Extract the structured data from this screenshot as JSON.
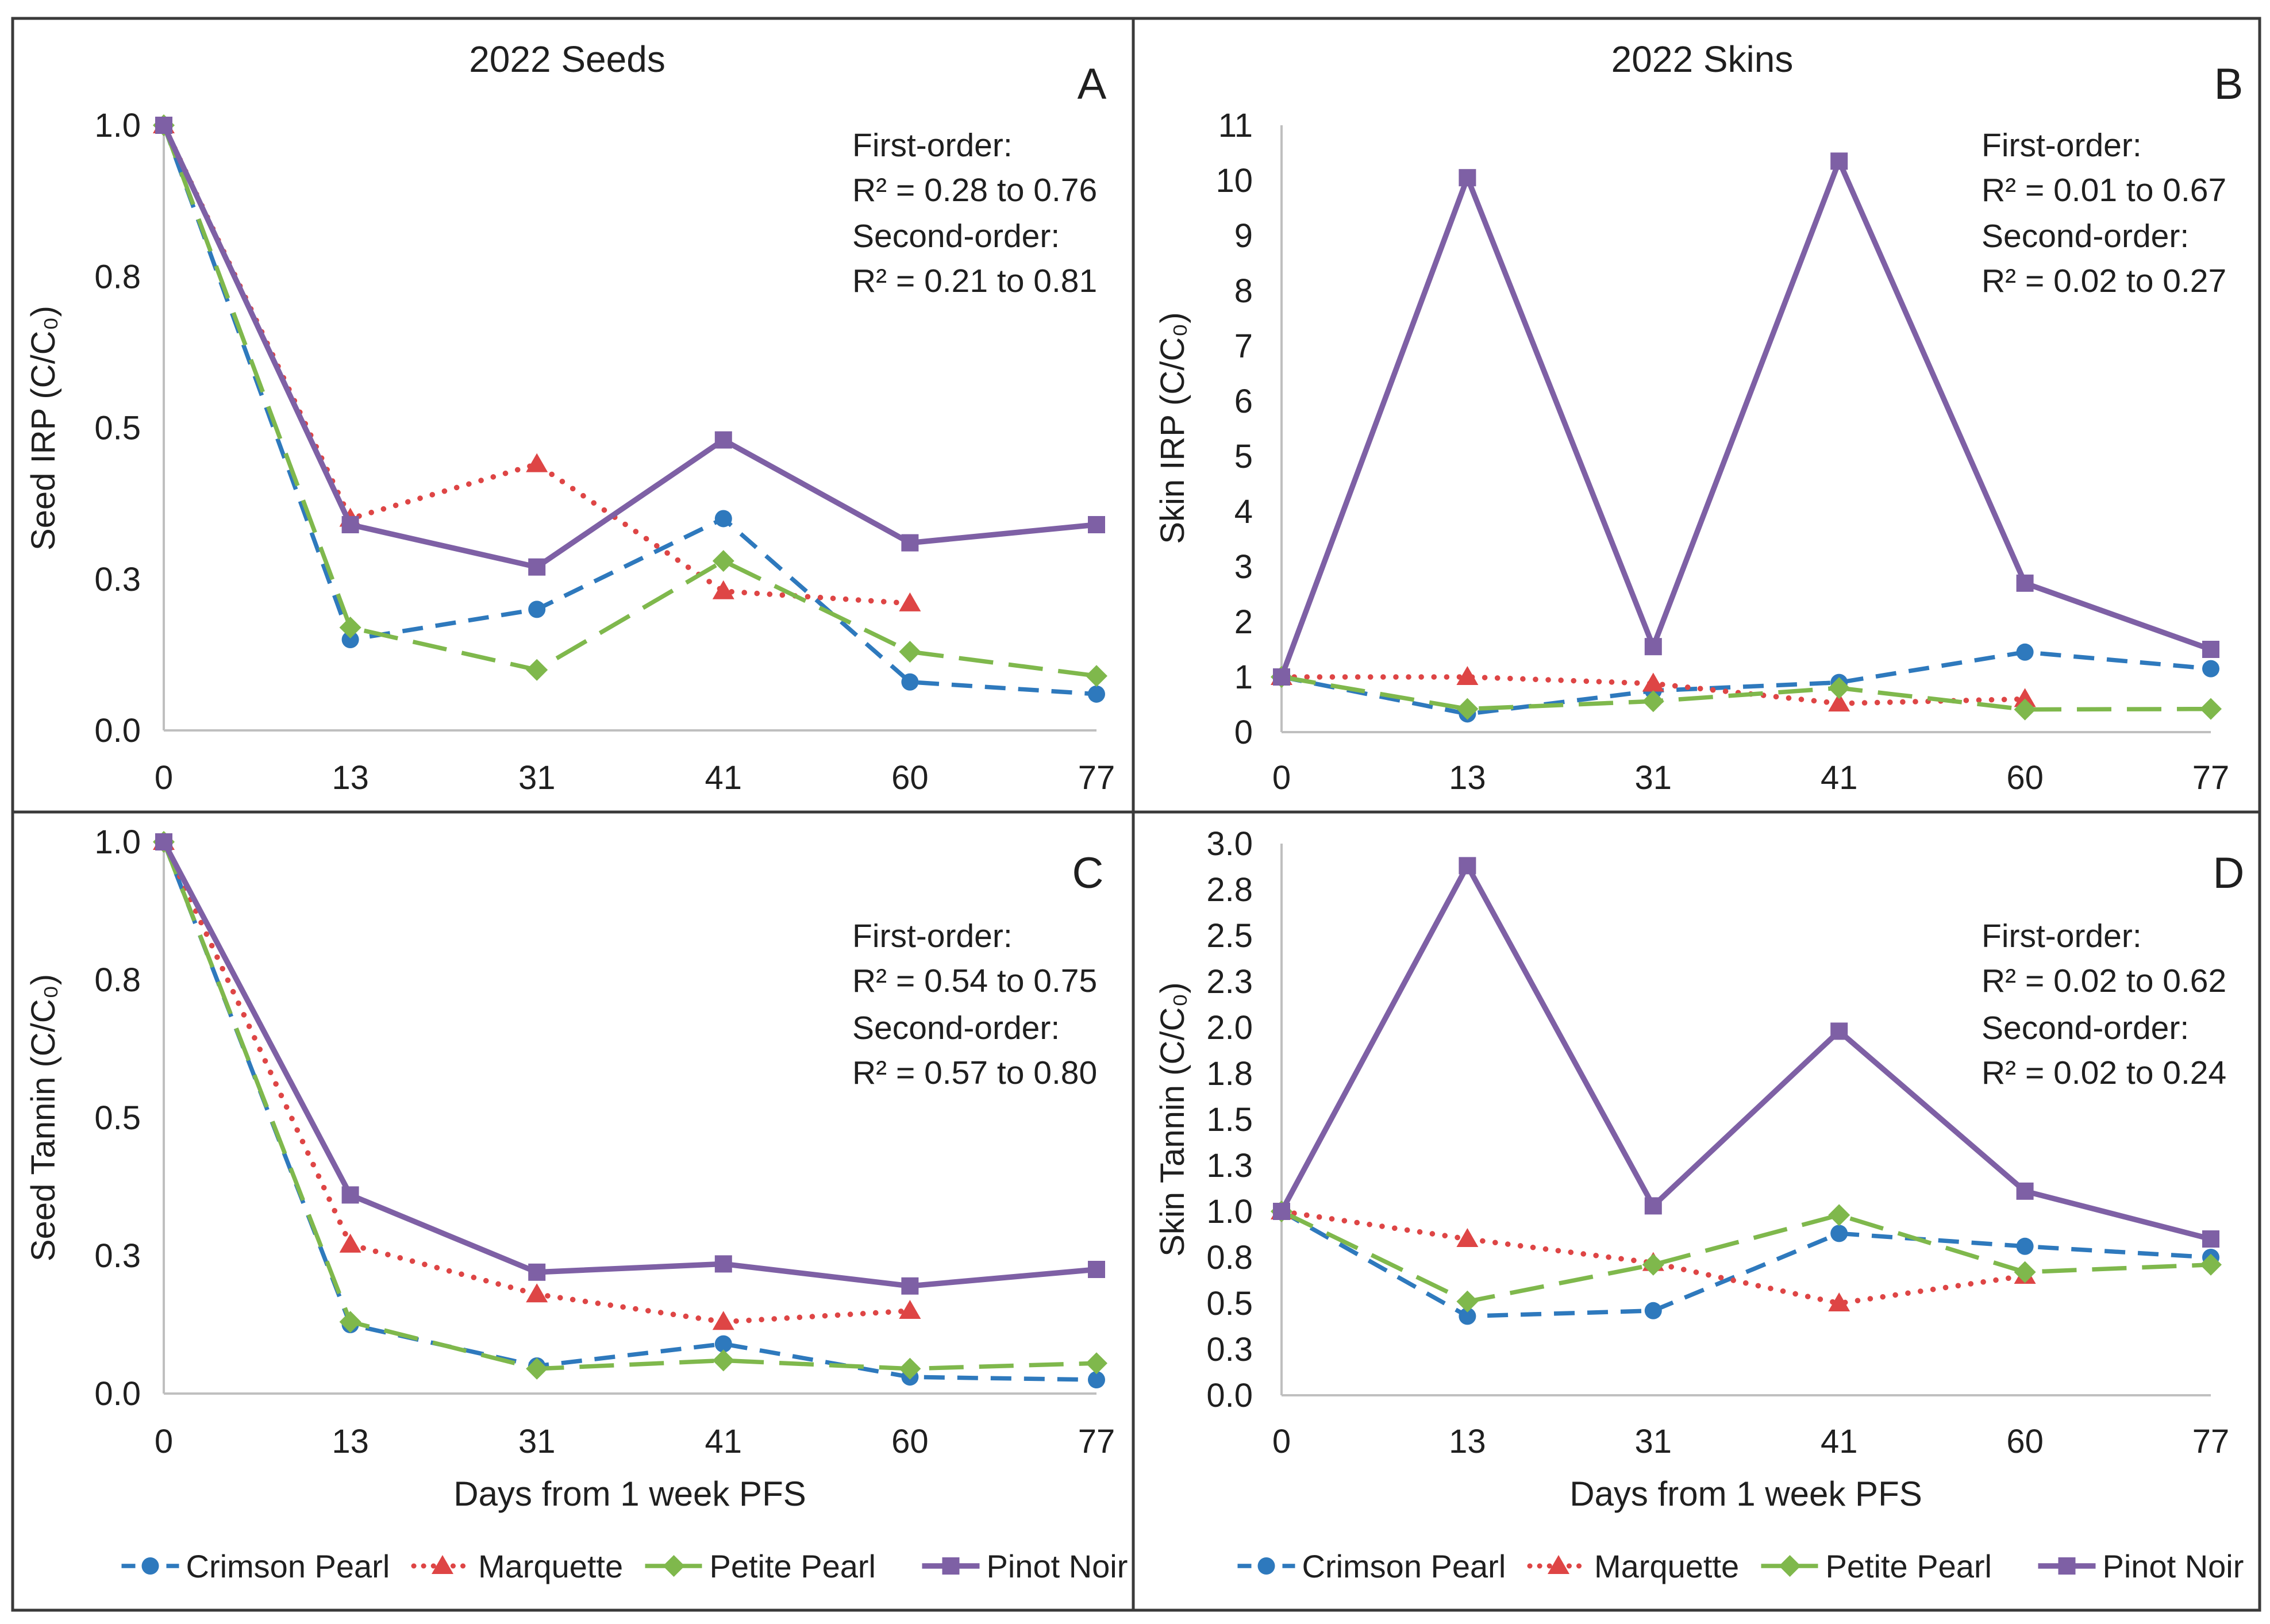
{
  "colors": {
    "crimson_pearl": "#2E79BD",
    "marquette": "#DE4545",
    "petite_pearl": "#7FB84C",
    "pinot_noir": "#7E60A5",
    "axis_line": "#BFBFBF",
    "text": "#1f1f1f",
    "frame": "#3a3a3a"
  },
  "legend": {
    "items": [
      {
        "label": "Crimson Pearl",
        "marker": "circle",
        "line": "dashed",
        "color_key": "crimson_pearl"
      },
      {
        "label": "Marquette",
        "marker": "triangle",
        "line": "dotted",
        "color_key": "marquette"
      },
      {
        "label": "Petite Pearl",
        "marker": "diamond",
        "line": "longdash",
        "color_key": "petite_pearl"
      },
      {
        "label": "Pinot Noir",
        "marker": "square",
        "line": "solid",
        "color_key": "pinot_noir"
      }
    ]
  },
  "x_axis": {
    "title": "Days from 1 week PFS",
    "categories": [
      "0",
      "13",
      "31",
      "41",
      "60",
      "77"
    ]
  },
  "chart_data": [
    {
      "type": "line",
      "letter": "A",
      "title": "2022 Seeds",
      "ylabel": "Seed IRP (C/C₀)",
      "xlabel": "",
      "ylim": [
        0,
        1
      ],
      "yticks": [
        {
          "v": 0.0,
          "label": "0.0"
        },
        {
          "v": 0.25,
          "label": "0.3"
        },
        {
          "v": 0.5,
          "label": "0.5"
        },
        {
          "v": 0.75,
          "label": "0.8"
        },
        {
          "v": 1.0,
          "label": "1.0"
        }
      ],
      "annotation": {
        "line1": "First-order:",
        "line2": "R² = 0.28 to 0.76",
        "line3": "Second-order:",
        "line4": "R² = 0.21 to 0.81"
      },
      "series": [
        {
          "name": "Crimson Pearl",
          "values": [
            1.0,
            0.15,
            0.2,
            0.35,
            0.08,
            0.06
          ]
        },
        {
          "name": "Marquette",
          "values": [
            1.0,
            0.35,
            0.44,
            0.23,
            0.21,
            null
          ]
        },
        {
          "name": "Petite Pearl",
          "values": [
            1.0,
            0.17,
            0.1,
            0.28,
            0.13,
            0.09
          ]
        },
        {
          "name": "Pinot Noir",
          "values": [
            1.0,
            0.34,
            0.27,
            0.48,
            0.31,
            0.34
          ]
        }
      ]
    },
    {
      "type": "line",
      "letter": "B",
      "title": "2022 Skins",
      "ylabel": "Skin IRP  (C/C₀)",
      "xlabel": "",
      "ylim": [
        0,
        11
      ],
      "yticks": [
        {
          "v": 0,
          "label": "0"
        },
        {
          "v": 1,
          "label": "1"
        },
        {
          "v": 2,
          "label": "2"
        },
        {
          "v": 3,
          "label": "3"
        },
        {
          "v": 4,
          "label": "4"
        },
        {
          "v": 5,
          "label": "5"
        },
        {
          "v": 6,
          "label": "6"
        },
        {
          "v": 7,
          "label": "7"
        },
        {
          "v": 8,
          "label": "8"
        },
        {
          "v": 9,
          "label": "9"
        },
        {
          "v": 10,
          "label": "10"
        },
        {
          "v": 11,
          "label": "11"
        }
      ],
      "annotation": {
        "line1": "First-order:",
        "line2": "R² = 0.01 to 0.67",
        "line3": "Second-order:",
        "line4": "R² = 0.02 to 0.27"
      },
      "series": [
        {
          "name": "Crimson Pearl",
          "values": [
            1.0,
            0.33,
            0.75,
            0.9,
            1.45,
            1.15
          ]
        },
        {
          "name": "Marquette",
          "values": [
            1.0,
            1.0,
            0.88,
            0.52,
            0.6,
            null
          ]
        },
        {
          "name": "Petite Pearl",
          "values": [
            1.0,
            0.42,
            0.56,
            0.8,
            0.41,
            0.42
          ]
        },
        {
          "name": "Pinot Noir",
          "values": [
            1.0,
            10.05,
            1.55,
            10.35,
            2.7,
            1.5
          ]
        }
      ]
    },
    {
      "type": "line",
      "letter": "C",
      "title": "",
      "ylabel": "Seed Tannin (C/C₀)",
      "xlabel": "Days from 1 week PFS",
      "ylim": [
        0,
        1
      ],
      "yticks": [
        {
          "v": 0.0,
          "label": "0.0"
        },
        {
          "v": 0.25,
          "label": "0.3"
        },
        {
          "v": 0.5,
          "label": "0.5"
        },
        {
          "v": 0.75,
          "label": "0.8"
        },
        {
          "v": 1.0,
          "label": "1.0"
        }
      ],
      "annotation": {
        "line1": "First-order:",
        "line2": "R² = 0.54 to 0.75",
        "line3": "Second-order:",
        "line4": "R² = 0.57 to 0.80"
      },
      "series": [
        {
          "name": "Crimson Pearl",
          "values": [
            1.0,
            0.125,
            0.05,
            0.09,
            0.03,
            0.025
          ]
        },
        {
          "name": "Marquette",
          "values": [
            1.0,
            0.27,
            0.18,
            0.13,
            0.15,
            null
          ]
        },
        {
          "name": "Petite Pearl",
          "values": [
            1.0,
            0.13,
            0.045,
            0.06,
            0.045,
            0.055
          ]
        },
        {
          "name": "Pinot Noir",
          "values": [
            1.0,
            0.36,
            0.22,
            0.235,
            0.195,
            0.225
          ]
        }
      ]
    },
    {
      "type": "line",
      "letter": "D",
      "title": "",
      "ylabel": "Skin Tannin (C/C₀)",
      "xlabel": "Days from 1 week PFS",
      "ylim": [
        0,
        3
      ],
      "yticks": [
        {
          "v": 0.0,
          "label": "0.0"
        },
        {
          "v": 0.25,
          "label": "0.3"
        },
        {
          "v": 0.5,
          "label": "0.5"
        },
        {
          "v": 0.75,
          "label": "0.8"
        },
        {
          "v": 1.0,
          "label": "1.0"
        },
        {
          "v": 1.25,
          "label": "1.3"
        },
        {
          "v": 1.5,
          "label": "1.5"
        },
        {
          "v": 1.75,
          "label": "1.8"
        },
        {
          "v": 2.0,
          "label": "2.0"
        },
        {
          "v": 2.25,
          "label": "2.3"
        },
        {
          "v": 2.5,
          "label": "2.5"
        },
        {
          "v": 2.75,
          "label": "2.8"
        },
        {
          "v": 3.0,
          "label": "3.0"
        }
      ],
      "annotation": {
        "line1": "First-order:",
        "line2": "R² = 0.02 to 0.62",
        "line3": "Second-order:",
        "line4": "R² = 0.02 to 0.24"
      },
      "series": [
        {
          "name": "Crimson Pearl",
          "values": [
            1.0,
            0.43,
            0.46,
            0.88,
            0.81,
            0.75
          ]
        },
        {
          "name": "Marquette",
          "values": [
            1.0,
            0.85,
            0.72,
            0.5,
            0.65,
            null
          ]
        },
        {
          "name": "Petite Pearl",
          "values": [
            1.0,
            0.51,
            0.71,
            0.98,
            0.67,
            0.71
          ]
        },
        {
          "name": "Pinot Noir",
          "values": [
            1.0,
            2.88,
            1.03,
            1.98,
            1.11,
            0.85
          ]
        }
      ]
    }
  ]
}
